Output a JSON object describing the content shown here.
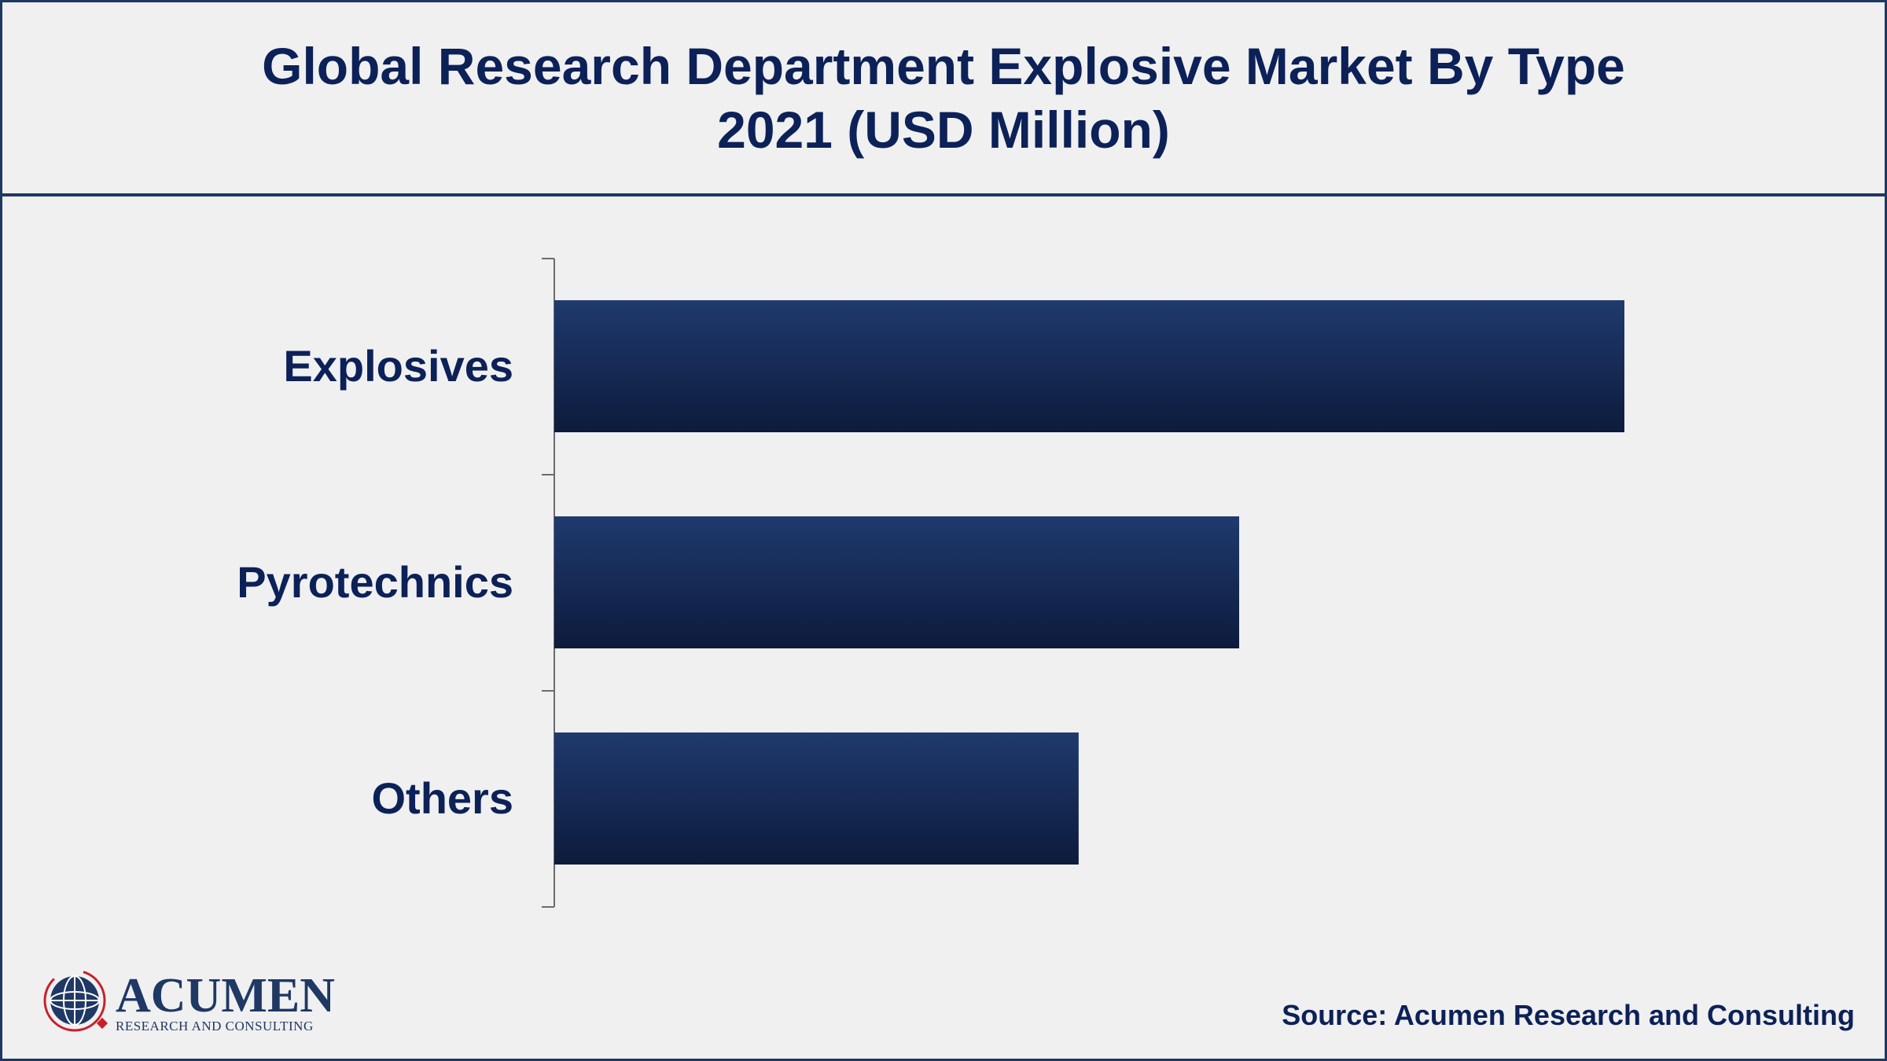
{
  "title": "Global Research Department Explosive Market By Type 2021 (USD Million)",
  "source": "Source: Acumen Research and Consulting",
  "logo": {
    "wordmark": "ACUMEN",
    "tagline": "RESEARCH AND CONSULTING"
  },
  "colors": {
    "bar_top": "#1f3a6e",
    "bar_bottom": "#0d1b3c",
    "text": "#0c2157",
    "axis": "#6b6b6b",
    "border": "#1f3864",
    "logo_red": "#c8202a"
  },
  "chart_data": {
    "type": "bar",
    "orientation": "horizontal",
    "categories": [
      "Explosives",
      "Pyrotechnics",
      "Others"
    ],
    "values": [
      100,
      64,
      49
    ],
    "xlim": [
      0,
      100
    ],
    "title": "Global Research Department Explosive Market By Type 2021 (USD Million)",
    "xlabel": "",
    "ylabel": "",
    "grid": false,
    "legend": false
  }
}
